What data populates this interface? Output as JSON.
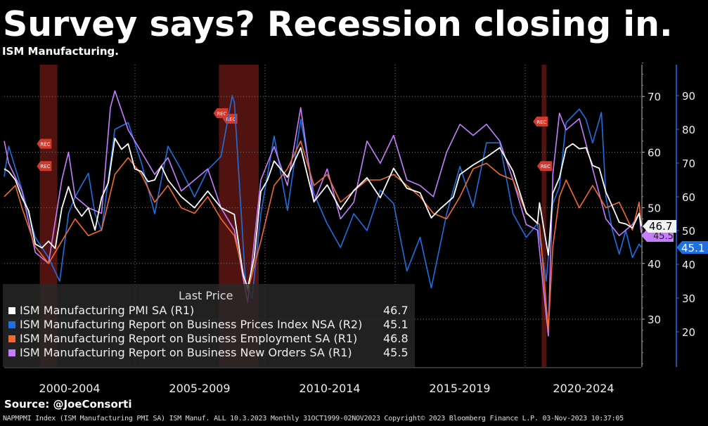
{
  "title": "Survey says? Recession closing in.",
  "subtitle": "ISM Manufacturing.",
  "source": "Source: @JoeConsorti",
  "footer": "NAPMPMI Index (ISM Manufacturing PMI SA) ISM Manuf. ALL 10.3.2023  Monthly 31OCT1999-02NOV2023 Copyright© 2023 Bloomberg Finance L.P.  03-Nov-2023 10:37:05",
  "legend": {
    "header": "Last Price",
    "items": [
      {
        "name": "ISM Manufacturing PMI SA  (R1)",
        "value": "46.7",
        "color": "#ffffff"
      },
      {
        "name": "ISM Manufacturing Report on Business Prices Index NSA (R2)",
        "value": "45.1",
        "color": "#1f6fe0"
      },
      {
        "name": "ISM Manufacturing Report on Business Employment SA  (R1)",
        "value": "46.8",
        "color": "#f26a2e"
      },
      {
        "name": "ISM Manufacturing Report on Business New Orders SA  (R1)",
        "value": "45.5",
        "color": "#c77dff"
      }
    ]
  },
  "last_labels": {
    "r1": "46.7",
    "r1_hidden": "45.5",
    "r2": "45.1"
  },
  "recession_marker": "REC",
  "chart_data": {
    "type": "line",
    "x_categories": [
      "2000-2004",
      "2005-2009",
      "2010-2014",
      "2015-2019",
      "2020-2024"
    ],
    "x_range": [
      1999.83,
      2023.83
    ],
    "y_right1": {
      "ticks": [
        30,
        40,
        50,
        60,
        70
      ],
      "range": [
        21,
        77
      ]
    },
    "y_right2": {
      "ticks": [
        20,
        30,
        40,
        50,
        60,
        70,
        80,
        90
      ],
      "range": [
        10,
        97
      ]
    },
    "recessions": [
      [
        2001.17,
        2001.83
      ],
      [
        2007.92,
        2009.42
      ],
      [
        2020.08,
        2020.25
      ]
    ],
    "grid": true,
    "series": [
      {
        "name": "ISM Manufacturing PMI SA  (R1)",
        "axis": "R1",
        "color": "#ffffff",
        "x": [
          1999.83,
          2000.0,
          2000.25,
          2000.5,
          2000.75,
          2001.0,
          2001.25,
          2001.5,
          2001.75,
          2002.0,
          2002.25,
          2002.5,
          2002.75,
          2003.0,
          2003.25,
          2003.5,
          2003.75,
          2004.0,
          2004.25,
          2004.5,
          2004.75,
          2005.0,
          2005.25,
          2005.5,
          2005.75,
          2006.0,
          2006.5,
          2007.0,
          2007.5,
          2008.0,
          2008.5,
          2008.83,
          2009.0,
          2009.25,
          2009.5,
          2009.75,
          2010.0,
          2010.5,
          2011.0,
          2011.5,
          2012.0,
          2012.5,
          2013.0,
          2013.5,
          2014.0,
          2014.5,
          2015.0,
          2015.5,
          2015.92,
          2016.25,
          2016.75,
          2017.0,
          2017.5,
          2018.0,
          2018.5,
          2019.0,
          2019.5,
          2019.92,
          2020.0,
          2020.33,
          2020.5,
          2020.75,
          2021.0,
          2021.25,
          2021.5,
          2021.75,
          2022.0,
          2022.25,
          2022.5,
          2022.75,
          2023.0,
          2023.25,
          2023.5,
          2023.75,
          2023.83
        ],
        "values": [
          57,
          56.5,
          55,
          51.8,
          49.5,
          43.5,
          42.8,
          44,
          42.7,
          49.9,
          53.8,
          50.2,
          48.5,
          50,
          46,
          51.8,
          54.5,
          62.5,
          60.5,
          61.5,
          57,
          56.5,
          54.7,
          55,
          57.5,
          55,
          52,
          50,
          53,
          50,
          48.8,
          38,
          35.6,
          41,
          52.9,
          55,
          58.4,
          55.5,
          60.8,
          51.1,
          54.1,
          49.7,
          53.1,
          55.4,
          51.8,
          57.1,
          53.5,
          52.7,
          48.2,
          49.8,
          51.9,
          56,
          57.7,
          59.1,
          60.8,
          56.6,
          49.1,
          47.2,
          50.9,
          41.5,
          52.6,
          55.4,
          60.7,
          61.5,
          60.6,
          60.8,
          57.6,
          57.1,
          52.8,
          50.2,
          47.4,
          47.1,
          46.4,
          49,
          46.7
        ]
      },
      {
        "name": "ISM Manufacturing Report on Business Prices Index NSA (R2)",
        "axis": "R2",
        "color": "#1f6fe0",
        "x": [
          1999.83,
          2000.0,
          2000.5,
          2001.0,
          2001.5,
          2001.92,
          2002.25,
          2002.5,
          2003.0,
          2003.25,
          2003.5,
          2004.0,
          2004.5,
          2005.0,
          2005.5,
          2006.0,
          2006.5,
          2007.0,
          2007.5,
          2008.0,
          2008.42,
          2008.5,
          2008.92,
          2009.17,
          2009.5,
          2010.0,
          2010.5,
          2011.0,
          2011.5,
          2012.0,
          2012.5,
          2013.0,
          2013.5,
          2014.0,
          2014.5,
          2015.0,
          2015.5,
          2015.92,
          2016.5,
          2017.0,
          2017.5,
          2018.0,
          2018.5,
          2019.0,
          2019.5,
          2019.92,
          2020.25,
          2020.5,
          2020.75,
          2021.0,
          2021.5,
          2021.75,
          2022.0,
          2022.33,
          2022.5,
          2022.75,
          2023.0,
          2023.25,
          2023.5,
          2023.75,
          2023.83
        ],
        "values": [
          66,
          75,
          62,
          48,
          42,
          35,
          55,
          60,
          67,
          55,
          50,
          80,
          82,
          70,
          55,
          75,
          68,
          60,
          68,
          72,
          90,
          88,
          35,
          30,
          55,
          78,
          56,
          83,
          61,
          52,
          45,
          55,
          50,
          62,
          58,
          38,
          48,
          33,
          55,
          69,
          57,
          76,
          76,
          55,
          48,
          52,
          35,
          58,
          63,
          82,
          86,
          83,
          76,
          85,
          60,
          50,
          43,
          50,
          42,
          46,
          45.1
        ]
      },
      {
        "name": "ISM Manufacturing Report on Business Employment SA  (R1)",
        "axis": "R1",
        "color": "#f26a2e",
        "x": [
          1999.83,
          2000.25,
          2000.5,
          2001.0,
          2001.5,
          2002.0,
          2002.5,
          2003.0,
          2003.5,
          2004.0,
          2004.5,
          2005.0,
          2005.5,
          2006.0,
          2006.5,
          2007.0,
          2007.5,
          2008.0,
          2008.5,
          2009.0,
          2009.5,
          2010.0,
          2010.5,
          2011.0,
          2011.5,
          2012.0,
          2012.5,
          2013.0,
          2013.5,
          2014.0,
          2014.5,
          2015.0,
          2015.5,
          2016.0,
          2016.5,
          2017.0,
          2017.5,
          2018.0,
          2018.5,
          2019.0,
          2019.5,
          2020.0,
          2020.33,
          2020.5,
          2020.75,
          2021.0,
          2021.5,
          2022.0,
          2022.5,
          2023.0,
          2023.5,
          2023.75,
          2023.83
        ],
        "values": [
          52,
          54,
          50,
          43,
          40,
          44,
          48,
          45,
          46,
          56,
          59,
          56,
          51,
          54,
          50,
          49,
          52,
          48,
          45,
          35,
          44,
          54,
          57,
          62,
          54,
          56,
          51,
          53,
          55,
          55,
          56,
          54,
          52,
          49,
          48,
          52,
          57,
          58,
          56,
          55,
          49,
          47,
          28,
          43,
          52,
          55,
          50,
          54,
          50,
          51,
          46,
          51,
          46.8
        ]
      },
      {
        "name": "ISM Manufacturing Report on Business New Orders SA  (R1)",
        "axis": "R1",
        "color": "#c77dff",
        "x": [
          1999.83,
          2000.0,
          2000.5,
          2001.0,
          2001.5,
          2002.0,
          2002.25,
          2002.5,
          2003.0,
          2003.5,
          2003.83,
          2004.0,
          2004.5,
          2005.0,
          2005.5,
          2006.0,
          2006.5,
          2007.0,
          2007.5,
          2008.0,
          2008.5,
          2009.0,
          2009.5,
          2010.0,
          2010.5,
          2011.0,
          2011.5,
          2012.0,
          2012.5,
          2013.0,
          2013.5,
          2014.0,
          2014.5,
          2015.0,
          2015.5,
          2016.0,
          2016.5,
          2017.0,
          2017.5,
          2018.0,
          2018.5,
          2019.0,
          2019.5,
          2019.92,
          2020.33,
          2020.5,
          2020.75,
          2021.0,
          2021.5,
          2022.0,
          2022.5,
          2023.0,
          2023.5,
          2023.75,
          2023.83
        ],
        "values": [
          62,
          58,
          53,
          42,
          40,
          55,
          60,
          52,
          50,
          49,
          68,
          71,
          64,
          60,
          56,
          59,
          53,
          55,
          57,
          50,
          46,
          33,
          55,
          61,
          54,
          68,
          51,
          57,
          48,
          51,
          62,
          58,
          63,
          55,
          54,
          52,
          60,
          65,
          63,
          65,
          62,
          55,
          47,
          46,
          27,
          56,
          67,
          64,
          66,
          57,
          48,
          45,
          47,
          49,
          45.5
        ]
      }
    ]
  }
}
